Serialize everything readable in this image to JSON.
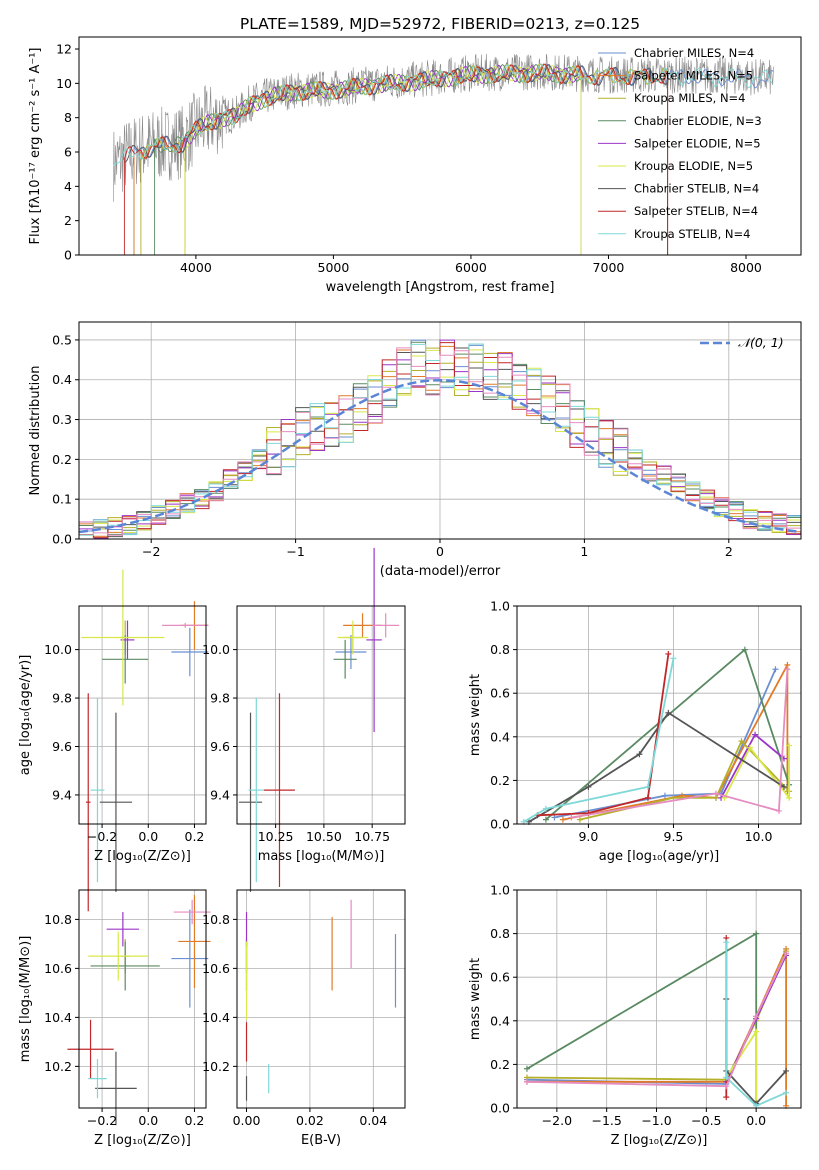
{
  "figure": {
    "title": "PLATE=1589, MJD=52972, FIBERID=0213, z=0.125"
  },
  "colors": {
    "chabrier_miles": "#6a8fd3",
    "salpeter_miles": "#e07b2a",
    "kroupa_miles": "#b5b02a",
    "chabrier_elodie": "#5a8a62",
    "salpeter_elodie": "#9b36c8",
    "kroupa_elodie": "#d8e84a",
    "chabrier_stelib": "#555555",
    "salpeter_stelib": "#c0282a",
    "kroupa_stelib": "#7fd8d8",
    "pink": "#e58cc0",
    "normal": "#5b86d6",
    "data_gray": "#888888"
  },
  "chart_data": [
    {
      "id": "spectrum",
      "type": "line",
      "xlabel": "wavelength [Angstrom, rest frame]",
      "ylabel": "Flux [fλ10⁻¹⁷ erg cm⁻² s⁻¹ A⁻¹]",
      "xlim": [
        3150,
        8400
      ],
      "ylim": [
        0,
        12.7
      ],
      "xticks": [
        "4000",
        "5000",
        "6000",
        "7000",
        "8000"
      ],
      "yticks": [
        "0",
        "2",
        "4",
        "6",
        "8",
        "10",
        "12"
      ],
      "legend": [
        "Chabrier MILES, N_SSP=4",
        "Salpeter MILES, N_SSP=5",
        "Kroupa MILES, N_SSP=4",
        "Chabrier ELODIE, N_SSP=3",
        "Salpeter ELODIE, N_SSP=5",
        "Kroupa ELODIE, N_SSP=5",
        "Chabrier STELIB, N_SSP=4",
        "Salpeter STELIB, N_SSP=4",
        "Kroupa STELIB, N_SSP=4"
      ],
      "continuum_x": [
        3400,
        3500,
        3600,
        3700,
        3800,
        3900,
        4000,
        4100,
        4200,
        4300,
        4400,
        4500,
        4700,
        5000,
        5300,
        5600,
        6000,
        6500,
        7000,
        7500,
        8000,
        8200
      ],
      "continuum_y": [
        5.3,
        5.8,
        6.2,
        6.4,
        6.5,
        6.6,
        7.4,
        7.8,
        8.1,
        8.2,
        8.9,
        9.2,
        9.6,
        9.7,
        10.0,
        10.2,
        10.6,
        10.7,
        10.5,
        10.5,
        10.4,
        10.3
      ]
    },
    {
      "id": "residuals",
      "type": "bar",
      "xlabel": "(data-model)/error",
      "ylabel": "Normed distribution",
      "xlim": [
        -2.5,
        2.5
      ],
      "ylim": [
        0,
        0.545
      ],
      "xticks": [
        "−2",
        "−1",
        "0",
        "1",
        "2"
      ],
      "yticks": [
        "0.0",
        "0.1",
        "0.2",
        "0.3",
        "0.4",
        "0.5"
      ],
      "legend_label": "𝒩(0, 1)",
      "series_values": [
        0.02,
        0.025,
        0.03,
        0.035,
        0.045,
        0.06,
        0.075,
        0.09,
        0.1,
        0.12,
        0.15,
        0.17,
        0.2,
        0.22,
        0.24,
        0.27,
        0.28,
        0.29,
        0.3,
        0.33,
        0.35,
        0.39,
        0.42,
        0.44,
        0.42,
        0.44,
        0.42,
        0.43,
        0.41,
        0.41,
        0.38,
        0.37,
        0.35,
        0.33,
        0.29,
        0.27,
        0.24,
        0.22,
        0.2,
        0.17,
        0.16,
        0.14,
        0.12,
        0.1,
        0.08,
        0.07,
        0.05,
        0.045,
        0.04,
        0.035
      ]
    },
    {
      "id": "age_vs_Z",
      "type": "scatter",
      "xlabel": "Z [log₁₀(Z/Z⊙)]",
      "ylabel": "age  [log₁₀(age/yr)]",
      "xlim": [
        -0.3,
        0.25
      ],
      "ylim": [
        9.28,
        10.18
      ],
      "xticks": [
        "−0.2",
        "0.0",
        "0.2"
      ],
      "yticks": [
        "9.4",
        "9.6",
        "9.8",
        "10.0"
      ],
      "points": [
        {
          "c": "chabrier_miles",
          "x": 0.18,
          "y": 9.99,
          "xe": 0.08,
          "ye": 0.1
        },
        {
          "c": "salpeter_miles",
          "x": 0.2,
          "y": 10.1,
          "xe": 0.06,
          "ye": 0.1
        },
        {
          "c": "kroupa_miles",
          "x": -0.1,
          "y": 10.05,
          "xe": 0.02,
          "ye": 0.07
        },
        {
          "c": "chabrier_elodie",
          "x": -0.1,
          "y": 9.96,
          "xe": 0.1,
          "ye": 0.1
        },
        {
          "c": "salpeter_elodie",
          "x": -0.09,
          "y": 10.04,
          "xe": 0.03,
          "ye": 0.08
        },
        {
          "c": "kroupa_elodie",
          "x": -0.11,
          "y": 10.05,
          "xe": 0.18,
          "ye": 0.28
        },
        {
          "c": "chabrier_stelib",
          "x": -0.14,
          "y": 9.37,
          "xe": 0.07,
          "ye": 0.37
        },
        {
          "c": "salpeter_stelib",
          "x": -0.26,
          "y": 9.37,
          "xe": 0.01,
          "ye": 0.45
        },
        {
          "c": "kroupa_stelib",
          "x": -0.22,
          "y": 9.42,
          "xe": 0.03,
          "ye": 0.38
        },
        {
          "c": "pink",
          "x": 0.16,
          "y": 10.1,
          "xe": 0.1,
          "ye": 0.01
        }
      ]
    },
    {
      "id": "age_vs_mass",
      "type": "scatter",
      "xlabel": "mass [log₁₀(M/M⊙)]",
      "ylabel": "",
      "xlim": [
        10.05,
        10.92
      ],
      "ylim": [
        9.28,
        10.18
      ],
      "xticks": [
        "10.25",
        "10.50",
        "10.75"
      ],
      "yticks": [
        "9.4",
        "9.6",
        "9.8",
        "10.0"
      ],
      "points": [
        {
          "c": "chabrier_miles",
          "x": 10.64,
          "y": 9.99,
          "xe": 0.08,
          "ye": 0.07
        },
        {
          "c": "salpeter_miles",
          "x": 10.7,
          "y": 10.1,
          "xe": 0.1,
          "ye": 0.05
        },
        {
          "c": "kroupa_miles",
          "x": 10.65,
          "y": 10.05,
          "xe": 0.05,
          "ye": 0.05
        },
        {
          "c": "chabrier_elodie",
          "x": 10.61,
          "y": 9.96,
          "xe": 0.06,
          "ye": 0.08
        },
        {
          "c": "salpeter_elodie",
          "x": 10.76,
          "y": 10.04,
          "xe": 0.04,
          "ye": 0.38
        },
        {
          "c": "kroupa_elodie",
          "x": 10.65,
          "y": 10.05,
          "xe": 0.08,
          "ye": 0.07
        },
        {
          "c": "chabrier_stelib",
          "x": 10.12,
          "y": 9.37,
          "xe": 0.06,
          "ye": 0.37
        },
        {
          "c": "salpeter_stelib",
          "x": 10.27,
          "y": 9.42,
          "xe": 0.08,
          "ye": 0.4
        },
        {
          "c": "kroupa_stelib",
          "x": 10.15,
          "y": 9.42,
          "xe": 0.04,
          "ye": 0.38
        },
        {
          "c": "pink",
          "x": 10.82,
          "y": 10.1,
          "xe": 0.07,
          "ye": 0.05
        }
      ]
    },
    {
      "id": "weight_vs_age",
      "type": "line",
      "xlabel": "age  [log₁₀(age/yr)]",
      "ylabel": "mass weight",
      "xlim": [
        8.58,
        10.25
      ],
      "ylim": [
        0,
        1.0
      ],
      "xticks": [
        "9.0",
        "9.5",
        "10.0"
      ],
      "yticks": [
        "0.0",
        "0.2",
        "0.4",
        "0.6",
        "0.8",
        "1.0"
      ],
      "series": [
        {
          "c": "chabrier_miles",
          "x": [
            8.8,
            9.45,
            9.78,
            10.1
          ],
          "y": [
            0.03,
            0.13,
            0.14,
            0.71
          ]
        },
        {
          "c": "salpeter_miles",
          "x": [
            8.85,
            9.55,
            9.75,
            10.17,
            10.17
          ],
          "y": [
            0.02,
            0.13,
            0.12,
            0.73,
            0.15
          ]
        },
        {
          "c": "kroupa_miles",
          "x": [
            8.95,
            9.5,
            9.75,
            9.9,
            10.18
          ],
          "y": [
            0.02,
            0.12,
            0.12,
            0.38,
            0.15
          ]
        },
        {
          "c": "chabrier_elodie",
          "x": [
            8.75,
            9.92,
            10.18
          ],
          "y": [
            0.02,
            0.8,
            0.18
          ]
        },
        {
          "c": "salpeter_elodie",
          "x": [
            9.78,
            9.98,
            10.15
          ],
          "y": [
            0.12,
            0.41,
            0.3
          ]
        },
        {
          "c": "kroupa_elodie",
          "x": [
            9.8,
            9.95,
            10.18,
            10.18
          ],
          "y": [
            0.12,
            0.35,
            0.12,
            0.36
          ]
        },
        {
          "c": "chabrier_stelib",
          "x": [
            8.65,
            9.0,
            9.3,
            9.47,
            10.15
          ],
          "y": [
            0.01,
            0.17,
            0.32,
            0.51,
            0.17
          ]
        },
        {
          "c": "salpeter_stelib",
          "x": [
            8.7,
            9.0,
            9.35,
            9.47
          ],
          "y": [
            0.04,
            0.05,
            0.12,
            0.78
          ]
        },
        {
          "c": "kroupa_stelib",
          "x": [
            8.62,
            8.75,
            9.35,
            9.5
          ],
          "y": [
            0.01,
            0.07,
            0.17,
            0.76
          ]
        },
        {
          "c": "pink",
          "x": [
            8.9,
            9.75,
            10.12,
            10.17
          ],
          "y": [
            0.03,
            0.14,
            0.06,
            0.71
          ]
        }
      ]
    },
    {
      "id": "mass_vs_Z",
      "type": "scatter",
      "xlabel": "Z [log₁₀(Z/Z⊙)]",
      "ylabel": "mass [log₁₀(M/M⊙)]",
      "xlim": [
        -0.3,
        0.25
      ],
      "ylim": [
        10.03,
        10.92
      ],
      "xticks": [
        "−0.2",
        "0.0",
        "0.2"
      ],
      "yticks": [
        "10.2",
        "10.4",
        "10.6",
        "10.8"
      ],
      "points": [
        {
          "c": "chabrier_miles",
          "x": 0.18,
          "y": 10.64,
          "xe": 0.08,
          "ye": 0.2
        },
        {
          "c": "salpeter_miles",
          "x": 0.2,
          "y": 10.71,
          "xe": 0.07,
          "ye": 0.19
        },
        {
          "c": "kroupa_miles",
          "x": -0.1,
          "y": 10.65,
          "xe": 0.02,
          "ye": 0.07
        },
        {
          "c": "chabrier_elodie",
          "x": -0.1,
          "y": 10.61,
          "xe": 0.15,
          "ye": 0.1
        },
        {
          "c": "salpeter_elodie",
          "x": -0.11,
          "y": 10.76,
          "xe": 0.07,
          "ye": 0.07
        },
        {
          "c": "kroupa_elodie",
          "x": -0.13,
          "y": 10.65,
          "xe": 0.13,
          "ye": 0.1
        },
        {
          "c": "chabrier_stelib",
          "x": -0.14,
          "y": 10.11,
          "xe": 0.09,
          "ye": 0.15
        },
        {
          "c": "salpeter_stelib",
          "x": -0.25,
          "y": 10.27,
          "xe": 0.1,
          "ye": 0.12
        },
        {
          "c": "kroupa_stelib",
          "x": -0.22,
          "y": 10.15,
          "xe": 0.04,
          "ye": 0.08
        },
        {
          "c": "pink",
          "x": 0.19,
          "y": 10.83,
          "xe": 0.08,
          "ye": 0.05
        }
      ]
    },
    {
      "id": "mass_vs_ebv",
      "type": "scatter",
      "xlabel": "E(B-V)",
      "ylabel": "",
      "xlim": [
        -0.003,
        0.05
      ],
      "ylim": [
        10.03,
        10.92
      ],
      "xticks": [
        "0.00",
        "0.02",
        "0.04"
      ],
      "yticks": [
        "10.2",
        "10.4",
        "10.6",
        "10.8"
      ],
      "points": [
        {
          "c": "chabrier_miles",
          "x": 0.047,
          "y": 10.59,
          "xe": 0,
          "ye": 0.15
        },
        {
          "c": "salpeter_miles",
          "x": 0.027,
          "y": 10.66,
          "xe": 0,
          "ye": 0.15
        },
        {
          "c": "kroupa_miles",
          "x": 0.0,
          "y": 10.65,
          "xe": 0,
          "ye": 0.07
        },
        {
          "c": "chabrier_elodie",
          "x": 0.0,
          "y": 10.61,
          "xe": 0,
          "ye": 0.1
        },
        {
          "c": "salpeter_elodie",
          "x": 0.0,
          "y": 10.76,
          "xe": 0,
          "ye": 0.07
        },
        {
          "c": "kroupa_elodie",
          "x": 0.0,
          "y": 10.55,
          "xe": 0,
          "ye": 0.16
        },
        {
          "c": "chabrier_stelib",
          "x": 0.0,
          "y": 10.11,
          "xe": 0,
          "ye": 0.05
        },
        {
          "c": "salpeter_stelib",
          "x": 0.0,
          "y": 10.3,
          "xe": 0,
          "ye": 0.08
        },
        {
          "c": "kroupa_stelib",
          "x": 0.007,
          "y": 10.15,
          "xe": 0,
          "ye": 0.06
        },
        {
          "c": "pink",
          "x": 0.033,
          "y": 10.74,
          "xe": 0,
          "ye": 0.14
        }
      ]
    },
    {
      "id": "weight_vs_Z",
      "type": "line",
      "xlabel": "Z [log₁₀(Z/Z⊙)]",
      "ylabel": "mass weight",
      "xlim": [
        -2.4,
        0.45
      ],
      "ylim": [
        0,
        1.0
      ],
      "xticks": [
        "−2.0",
        "−1.5",
        "−1.0",
        "−0.5",
        "0.0"
      ],
      "yticks": [
        "0.0",
        "0.2",
        "0.4",
        "0.6",
        "0.8",
        "1.0"
      ],
      "series": [
        {
          "c": "chabrier_miles",
          "x": [
            -2.3,
            -0.3,
            0.0,
            0.3
          ],
          "y": [
            0.13,
            0.11,
            0.42,
            0.72
          ]
        },
        {
          "c": "salpeter_miles",
          "x": [
            -2.3,
            -0.3,
            0.0,
            0.3,
            0.3
          ],
          "y": [
            0.12,
            0.12,
            0.42,
            0.73,
            0.01
          ]
        },
        {
          "c": "kroupa_miles",
          "x": [
            -2.3,
            -0.3,
            0.0,
            0.3
          ],
          "y": [
            0.14,
            0.13,
            0.4,
            0.72
          ]
        },
        {
          "c": "chabrier_elodie",
          "x": [
            -2.3,
            0.0,
            0.0
          ],
          "y": [
            0.18,
            0.8,
            0.03
          ]
        },
        {
          "c": "salpeter_elodie",
          "x": [
            -0.3,
            0.0,
            0.3
          ],
          "y": [
            0.12,
            0.41,
            0.7
          ]
        },
        {
          "c": "kroupa_elodie",
          "x": [
            -0.3,
            0.0,
            0.0
          ],
          "y": [
            0.14,
            0.35,
            0.02
          ]
        },
        {
          "c": "chabrier_stelib",
          "x": [
            -0.3,
            -0.3,
            0.0,
            0.3
          ],
          "y": [
            0.5,
            0.17,
            0.02,
            0.17
          ]
        },
        {
          "c": "salpeter_stelib",
          "x": [
            -0.3,
            -0.3
          ],
          "y": [
            0.78,
            0.05
          ]
        },
        {
          "c": "kroupa_stelib",
          "x": [
            -0.3,
            -0.3,
            0.0,
            0.3
          ],
          "y": [
            0.76,
            0.14,
            0.01,
            0.07
          ]
        },
        {
          "c": "pink",
          "x": [
            -2.3,
            -0.3,
            0.0,
            0.3
          ],
          "y": [
            0.12,
            0.1,
            0.42,
            0.71
          ]
        }
      ]
    }
  ]
}
